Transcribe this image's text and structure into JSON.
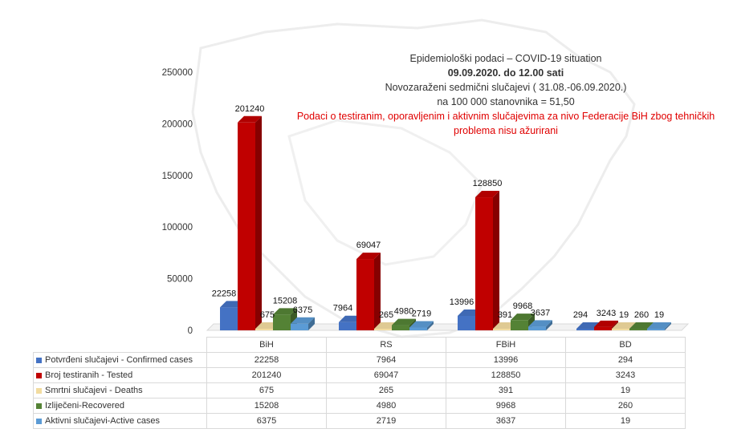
{
  "title_lines": [
    "Epidemiološki podaci – COVID-19 situation",
    "09.09.2020. do 12.00 sati",
    "Novozaraženi sedmični slučajevi ( 31.08.-06.09.2020.)",
    "na 100 000 stanovnika = 51,50",
    "Podaci o testiranim, oporavljenim i aktivnim slučajevima za nivo Federacije BiH zbog tehničkih problema nisu ažurirani"
  ],
  "chart_data": {
    "type": "bar",
    "title": "Epidemiološki podaci – COVID-19 situation",
    "categories": [
      "BiH",
      "RS",
      "FBiH",
      "BD"
    ],
    "series": [
      {
        "name": "Potvrđeni slučajevi - Confirmed cases",
        "color": "#4472c4",
        "values": [
          22258,
          7964,
          13996,
          294
        ]
      },
      {
        "name": "Broj testiranih - Tested",
        "color": "#c00000",
        "values": [
          201240,
          69047,
          128850,
          3243
        ]
      },
      {
        "name": "Smrtni slučajevi - Deaths",
        "color": "#f2dca0",
        "values": [
          675,
          265,
          391,
          19
        ]
      },
      {
        "name": "Izliječeni-Recovered",
        "color": "#548235",
        "values": [
          15208,
          4980,
          9968,
          260
        ]
      },
      {
        "name": "Aktivni slučajevi-Active cases",
        "color": "#5b9bd5",
        "values": [
          6375,
          2719,
          3637,
          19
        ]
      }
    ],
    "ylim": [
      0,
      250000
    ],
    "yticks": [
      0,
      50000,
      100000,
      150000,
      200000,
      250000
    ],
    "grid": false,
    "legend": "data-table"
  }
}
